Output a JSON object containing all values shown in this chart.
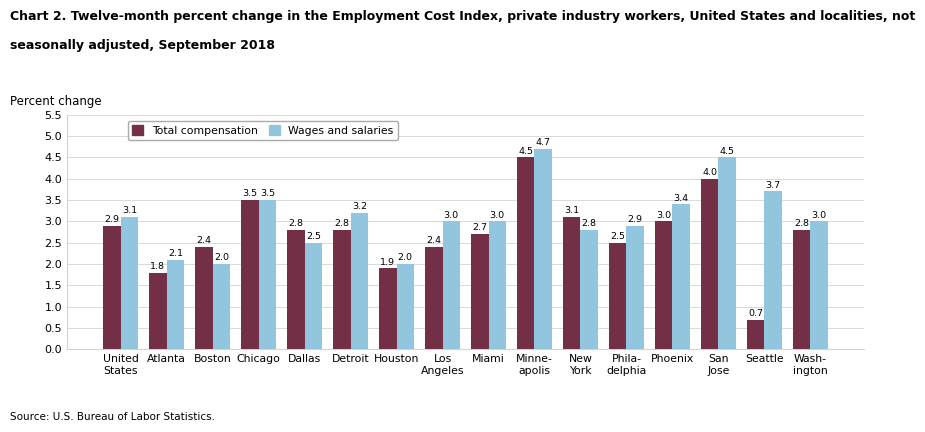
{
  "title_line1": "Chart 2. Twelve-month percent change in the Employment Cost Index, private industry workers, United States and localities, not",
  "title_line2": "seasonally adjusted, September 2018",
  "ylabel": "Percent change",
  "source": "Source: U.S. Bureau of Labor Statistics.",
  "categories": [
    "United\nStates",
    "Atlanta",
    "Boston",
    "Chicago",
    "Dallas",
    "Detroit",
    "Houston",
    "Los\nAngeles",
    "Miami",
    "Minne-\napolis",
    "New\nYork",
    "Phila-\ndelphia",
    "Phoenix",
    "San\nJose",
    "Seattle",
    "Wash-\nington"
  ],
  "total_compensation": [
    2.9,
    1.8,
    2.4,
    3.5,
    2.8,
    2.8,
    1.9,
    2.4,
    2.7,
    4.5,
    3.1,
    2.5,
    3.0,
    4.0,
    0.7,
    2.8
  ],
  "wages_salaries": [
    3.1,
    2.1,
    2.0,
    3.5,
    2.5,
    3.2,
    2.0,
    3.0,
    3.0,
    4.7,
    2.8,
    2.9,
    3.4,
    4.5,
    3.7,
    3.0
  ],
  "color_total": "#722F45",
  "color_wages": "#92C5DE",
  "ylim": [
    0,
    5.5
  ],
  "yticks": [
    0.0,
    0.5,
    1.0,
    1.5,
    2.0,
    2.5,
    3.0,
    3.5,
    4.0,
    4.5,
    5.0,
    5.5
  ],
  "legend_labels": [
    "Total compensation",
    "Wages and salaries"
  ],
  "bar_width": 0.38,
  "title_fontsize": 9.0,
  "label_fontsize": 7.8,
  "tick_fontsize": 8.0,
  "ylabel_fontsize": 8.5,
  "value_fontsize": 6.8
}
